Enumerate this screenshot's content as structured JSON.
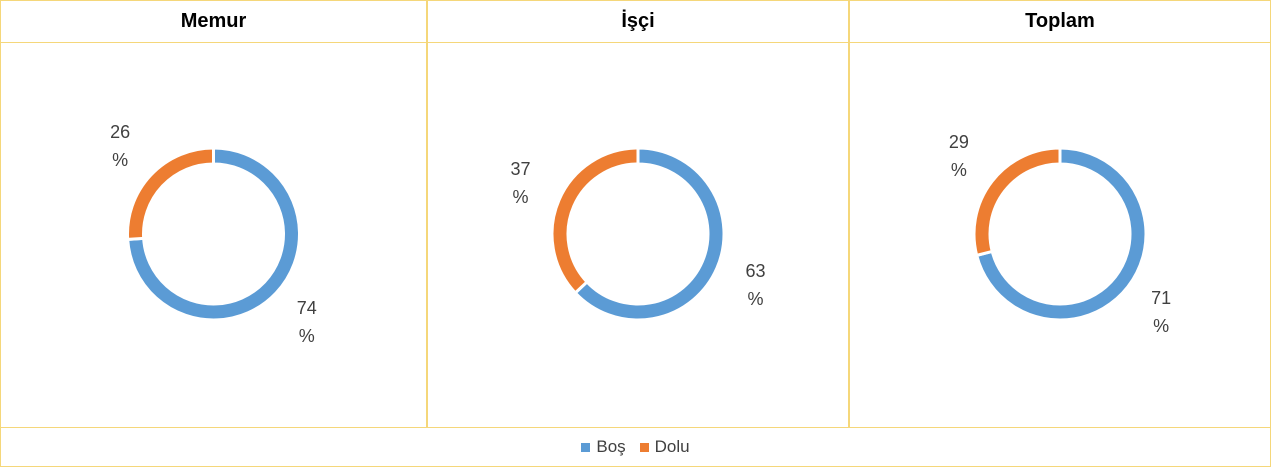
{
  "chart_data": [
    {
      "type": "donut",
      "title": "Memur",
      "categories": [
        "Boş",
        "Dolu"
      ],
      "values": [
        74,
        26
      ],
      "value_labels": [
        "74 %",
        "26 %"
      ],
      "colors": [
        "#5b9bd5",
        "#ed7d31"
      ]
    },
    {
      "type": "donut",
      "title": "İşçi",
      "categories": [
        "Boş",
        "Dolu"
      ],
      "values": [
        63,
        37
      ],
      "value_labels": [
        "63 %",
        "37 %"
      ],
      "colors": [
        "#5b9bd5",
        "#ed7d31"
      ]
    },
    {
      "type": "donut",
      "title": "Toplam",
      "categories": [
        "Boş",
        "Dolu"
      ],
      "values": [
        71,
        29
      ],
      "value_labels": [
        "71 %",
        "29 %"
      ],
      "colors": [
        "#5b9bd5",
        "#ed7d31"
      ]
    }
  ]
}
